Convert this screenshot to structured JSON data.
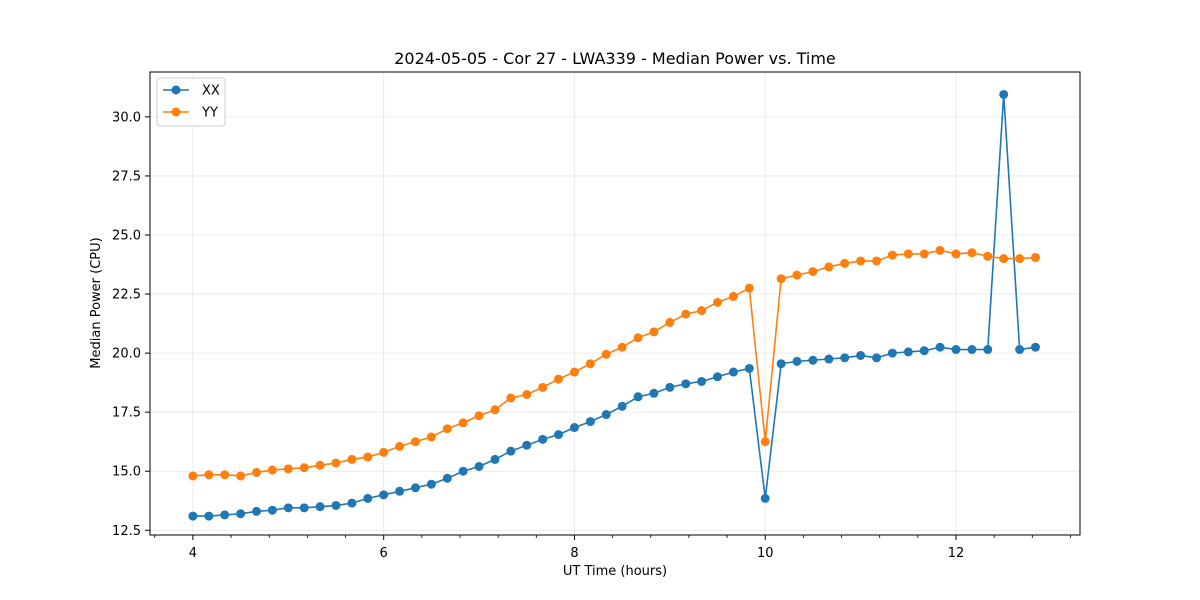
{
  "chart_data": {
    "type": "line",
    "title": "2024-05-05 - Cor 27 - LWA339 - Median Power vs. Time",
    "xlabel": "UT Time (hours)",
    "ylabel": "Median Power (CPU)",
    "xlim": [
      3.55,
      13.3
    ],
    "ylim": [
      12.3,
      31.9
    ],
    "xticks": [
      4,
      6,
      8,
      10,
      12
    ],
    "xtick_labels": [
      "4",
      "6",
      "8",
      "10",
      "12"
    ],
    "xminor_step": 0.4,
    "yticks": [
      12.5,
      15.0,
      17.5,
      20.0,
      22.5,
      25.0,
      27.5,
      30.0
    ],
    "ytick_labels": [
      "12.5",
      "15.0",
      "17.5",
      "20.0",
      "22.5",
      "25.0",
      "27.5",
      "30.0"
    ],
    "grid": true,
    "legend_position": "top-left",
    "x": [
      4.0,
      4.167,
      4.333,
      4.5,
      4.667,
      4.833,
      5.0,
      5.167,
      5.333,
      5.5,
      5.667,
      5.833,
      6.0,
      6.167,
      6.333,
      6.5,
      6.667,
      6.833,
      7.0,
      7.167,
      7.333,
      7.5,
      7.667,
      7.833,
      8.0,
      8.167,
      8.333,
      8.5,
      8.667,
      8.833,
      9.0,
      9.167,
      9.333,
      9.5,
      9.667,
      9.833,
      10.0,
      10.167,
      10.333,
      10.5,
      10.667,
      10.833,
      11.0,
      11.167,
      11.333,
      11.5,
      11.667,
      11.833,
      12.0,
      12.167,
      12.333,
      12.5,
      12.667,
      12.833
    ],
    "series": [
      {
        "name": "XX",
        "color": "#1f77b4",
        "values": [
          13.1,
          13.1,
          13.15,
          13.2,
          13.3,
          13.35,
          13.45,
          13.45,
          13.5,
          13.55,
          13.65,
          13.85,
          14.0,
          14.15,
          14.3,
          14.45,
          14.7,
          15.0,
          15.2,
          15.5,
          15.85,
          16.1,
          16.35,
          16.55,
          16.85,
          17.1,
          17.4,
          17.75,
          18.15,
          18.3,
          18.55,
          18.7,
          18.8,
          19.0,
          19.2,
          19.35,
          13.85,
          19.55,
          19.65,
          19.7,
          19.75,
          19.8,
          19.9,
          19.8,
          20.0,
          20.05,
          20.1,
          20.25,
          20.15,
          20.15,
          20.15,
          30.95,
          20.15,
          20.25
        ]
      },
      {
        "name": "YY",
        "color": "#ff7f0e",
        "values": [
          14.8,
          14.85,
          14.85,
          14.8,
          14.95,
          15.05,
          15.1,
          15.15,
          15.25,
          15.35,
          15.5,
          15.6,
          15.8,
          16.05,
          16.25,
          16.45,
          16.8,
          17.05,
          17.35,
          17.6,
          18.1,
          18.25,
          18.55,
          18.9,
          19.2,
          19.55,
          19.95,
          20.25,
          20.65,
          20.9,
          21.3,
          21.65,
          21.8,
          22.15,
          22.4,
          22.75,
          16.25,
          23.15,
          23.3,
          23.45,
          23.65,
          23.8,
          23.9,
          23.9,
          24.15,
          24.2,
          24.2,
          24.35,
          24.2,
          24.25,
          24.1,
          24.0,
          24.0,
          24.05
        ]
      }
    ]
  }
}
